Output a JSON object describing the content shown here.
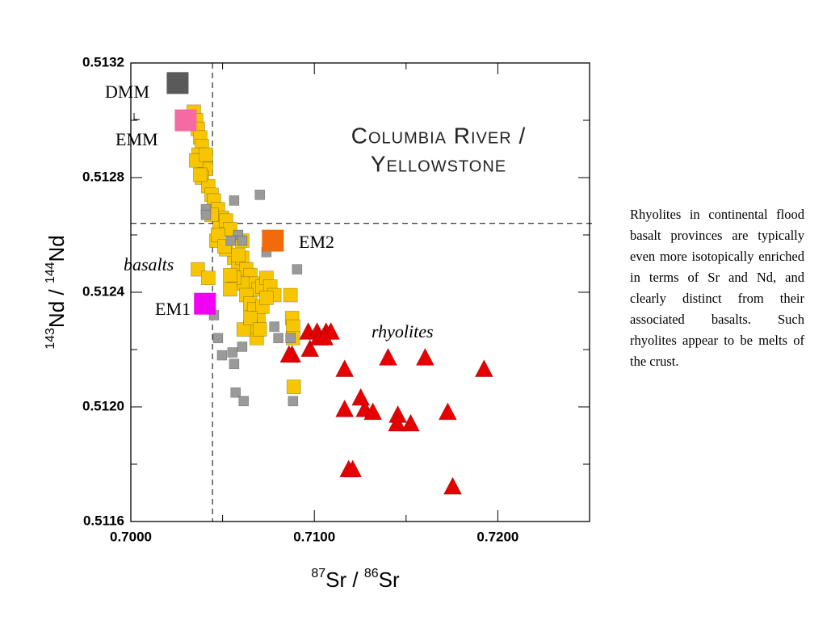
{
  "chart_data": {
    "type": "scatter",
    "title_lines": [
      "Columbia River /",
      "Yellowstone"
    ],
    "xlabel": [
      "87",
      "Sr / ",
      "86",
      "Sr"
    ],
    "ylabel": [
      "143",
      "Nd / ",
      "144",
      "Nd"
    ],
    "xlim": [
      0.7,
      0.725
    ],
    "ylim": [
      0.5116,
      0.5132
    ],
    "xticks": [
      {
        "value": 0.7,
        "label": "0.7000"
      },
      {
        "value": 0.71,
        "label": "0.7100"
      },
      {
        "value": 0.72,
        "label": "0.7200"
      }
    ],
    "yticks": [
      0.5116,
      {
        "value": 0.512,
        "label": "0.5120"
      },
      0.5124,
      0.5128,
      0.5132
    ],
    "xminor": [
      0.705,
      0.715
    ],
    "yminor": [
      0.5118,
      0.5122,
      0.5126,
      0.513
    ],
    "reference_lines": {
      "x": 0.70445,
      "y": 0.51264
    },
    "series": [
      {
        "name": "basalts",
        "marker": "square",
        "color": "#f7c600",
        "x": [
          0.70343,
          0.70356,
          0.70365,
          0.70378,
          0.70387,
          0.70369,
          0.70396,
          0.70409,
          0.70387,
          0.70422,
          0.7044,
          0.70453,
          0.70475,
          0.70497,
          0.70484,
          0.70519,
          0.70541,
          0.70466,
          0.70563,
          0.70585,
          0.70607,
          0.70629,
          0.70651,
          0.70673,
          0.70695,
          0.70717,
          0.70739,
          0.7076,
          0.70782,
          0.70607,
          0.70629,
          0.70651,
          0.70673,
          0.70695,
          0.70686,
          0.70651,
          0.70615,
          0.70563,
          0.70541,
          0.70365,
          0.70422,
          0.70519,
          0.70607,
          0.7087,
          0.70879,
          0.70884,
          0.70884,
          0.70888,
          0.70717,
          0.70739,
          0.70356,
          0.70378,
          0.70409,
          0.7044,
          0.70475,
          0.7051,
          0.70585,
          0.70541,
          0.70651,
          0.70703
        ],
        "y": [
          0.51303,
          0.513,
          0.51297,
          0.51294,
          0.51291,
          0.51288,
          0.51286,
          0.51283,
          0.5128,
          0.51277,
          0.51274,
          0.51272,
          0.51269,
          0.51266,
          0.51263,
          0.51265,
          0.51262,
          0.51258,
          0.51252,
          0.51249,
          0.51252,
          0.51248,
          0.51246,
          0.51243,
          0.51241,
          0.51242,
          0.51245,
          0.51242,
          0.51239,
          0.51243,
          0.51239,
          0.51236,
          0.51234,
          0.51231,
          0.51224,
          0.51228,
          0.51227,
          0.51245,
          0.51246,
          0.51248,
          0.51245,
          0.51255,
          0.51258,
          0.51239,
          0.51231,
          0.51228,
          0.51224,
          0.51207,
          0.51235,
          0.51238,
          0.51286,
          0.51281,
          0.51288,
          0.51267,
          0.5126,
          0.51256,
          0.51253,
          0.51241,
          0.51231,
          0.51227
        ]
      },
      {
        "marker": "square",
        "color": "#9a9a9a",
        "x": [
          0.70703,
          0.70563,
          0.70585,
          0.70607,
          0.70545,
          0.70409,
          0.70906,
          0.70739,
          0.70804,
          0.70782,
          0.70475,
          0.70497,
          0.70554,
          0.70563,
          0.70607,
          0.70571,
          0.70615,
          0.70884,
          0.7087,
          0.70453,
          0.70409
        ],
        "y": [
          0.51274,
          0.51272,
          0.5126,
          0.51258,
          0.51258,
          0.51269,
          0.51248,
          0.51254,
          0.51224,
          0.51228,
          0.51224,
          0.51218,
          0.51219,
          0.51215,
          0.51221,
          0.51205,
          0.51202,
          0.51202,
          0.51224,
          0.51232,
          0.51267
        ]
      },
      {
        "name": "rhyolites",
        "marker": "triangle",
        "color": "#e60000",
        "x": [
          0.70967,
          0.71015,
          0.71064,
          0.7109,
          0.70879,
          0.70862,
          0.70976,
          0.71024,
          0.71055,
          0.71402,
          0.71604,
          0.71925,
          0.71165,
          0.71253,
          0.71165,
          0.71275,
          0.71319,
          0.71455,
          0.71451,
          0.71525,
          0.71727,
          0.71187,
          0.71209,
          0.71754
        ],
        "y": [
          0.51226,
          0.51226,
          0.51226,
          0.51226,
          0.51218,
          0.51218,
          0.5122,
          0.51224,
          0.51224,
          0.51217,
          0.51217,
          0.51213,
          0.51213,
          0.51203,
          0.51199,
          0.51199,
          0.51198,
          0.51197,
          0.51194,
          0.51194,
          0.51198,
          0.51178,
          0.51178,
          0.51172
        ]
      }
    ],
    "end_members": [
      {
        "label": "DMM",
        "color": "#5a5a5a",
        "x": 0.70255,
        "y": 0.51313
      },
      {
        "label": "EMM",
        "color": "#f56aa0",
        "x": 0.70299,
        "y": 0.513
      },
      {
        "label": "EM2",
        "color": "#f26a0a",
        "x": 0.70774,
        "y": 0.51258
      },
      {
        "label": "EM1",
        "color": "#f200f2",
        "x": 0.70404,
        "y": 0.51236
      }
    ]
  },
  "note": "Rhyolites in continental flood basalt provinces are typically even more isotopically enriched in terms of Sr and Nd, and clearly distinct from their associated basalts.  Such rhyolites appear to be melts of the crust."
}
